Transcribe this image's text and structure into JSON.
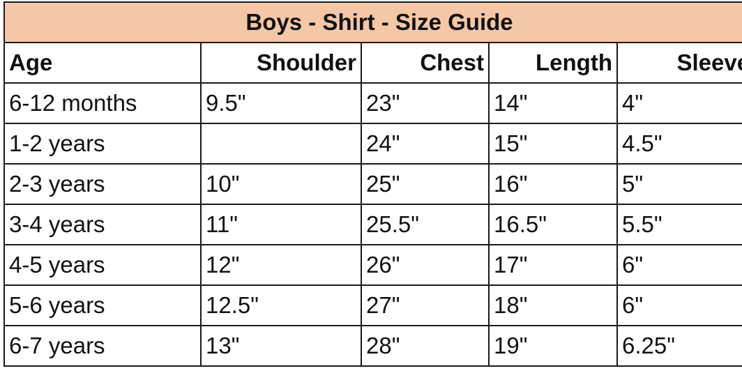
{
  "title": "Boys - Shirt - Size Guide",
  "title_bg": "#f4c7a6",
  "columns": [
    "Age",
    "Shoulder",
    "Chest",
    "Length",
    "Sleeve"
  ],
  "rows": [
    [
      "6-12 months",
      "9.5\"",
      "23\"",
      "14\"",
      "4\""
    ],
    [
      "1-2 years",
      "",
      "24\"",
      "15\"",
      "4.5\""
    ],
    [
      "2-3 years",
      "10\"",
      "25\"",
      "16\"",
      "5\""
    ],
    [
      "3-4 years",
      "11\"",
      "25.5\"",
      "16.5\"",
      "5.5\""
    ],
    [
      "4-5 years",
      "12\"",
      "26\"",
      "17\"",
      "6\""
    ],
    [
      "5-6 years",
      "12.5\"",
      "27\"",
      "18\"",
      "6\""
    ],
    [
      "6-7 years",
      "13\"",
      "28\"",
      "19\"",
      "6.25\""
    ]
  ]
}
